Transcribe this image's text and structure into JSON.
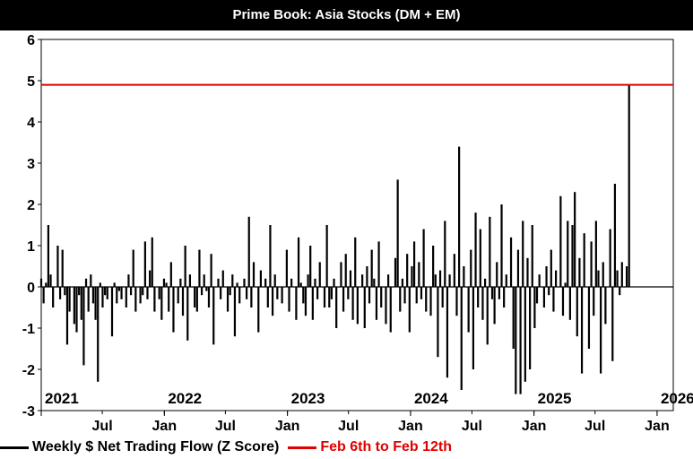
{
  "chart_data": {
    "type": "bar",
    "title": "Prime Book: Asia Stocks (DM + EM)",
    "ylim": [
      -3,
      6
    ],
    "yticks": [
      6,
      5,
      4,
      3,
      2,
      1,
      0,
      -1,
      -2,
      -3
    ],
    "year_labels": [
      {
        "label": "2021",
        "date": "2021-01-01"
      },
      {
        "label": "2022",
        "date": "2022-01-01"
      },
      {
        "label": "2023",
        "date": "2023-01-01"
      },
      {
        "label": "2024",
        "date": "2024-01-01"
      },
      {
        "label": "2025",
        "date": "2025-01-01"
      },
      {
        "label": "2026",
        "date": "2026-01-01"
      }
    ],
    "month_labels": [
      {
        "label": "Jul",
        "date": "2021-07-01"
      },
      {
        "label": "Jan",
        "date": "2022-01-01"
      },
      {
        "label": "Jul",
        "date": "2022-07-01"
      },
      {
        "label": "Jan",
        "date": "2023-01-01"
      },
      {
        "label": "Jul",
        "date": "2023-07-01"
      },
      {
        "label": "Jan",
        "date": "2024-01-01"
      },
      {
        "label": "Jul",
        "date": "2024-07-01"
      },
      {
        "label": "Jan",
        "date": "2025-01-01"
      },
      {
        "label": "Jul",
        "date": "2025-07-01"
      },
      {
        "label": "Jan",
        "date": "2026-01-01"
      }
    ],
    "x_start": "2021-01-01",
    "x_end": "2026-02-18",
    "series": [
      {
        "name": "Weekly $ Net Trading Flow (Z Score)",
        "color": "#000000",
        "start_date": "2021-01-01",
        "interval_days": 7,
        "values": [
          0.2,
          -0.4,
          0.1,
          1.5,
          0.3,
          -0.5,
          0.0,
          1.0,
          -0.3,
          0.9,
          -0.2,
          -1.4,
          -0.6,
          0.0,
          -0.9,
          -1.1,
          -0.2,
          -0.8,
          -1.9,
          0.2,
          -0.6,
          0.3,
          -0.4,
          -0.8,
          -2.3,
          0.1,
          -0.5,
          -0.2,
          -0.3,
          0.0,
          -1.2,
          0.1,
          -0.4,
          -0.1,
          -0.3,
          0.0,
          -0.5,
          0.3,
          -0.2,
          0.9,
          -0.6,
          0.0,
          -0.4,
          -0.2,
          1.1,
          -0.3,
          0.4,
          1.2,
          -0.6,
          0.0,
          -0.3,
          -0.8,
          0.2,
          0.1,
          -0.6,
          0.6,
          -1.1,
          0.0,
          -0.4,
          0.2,
          -0.7,
          1.0,
          -1.3,
          0.3,
          0.0,
          -0.5,
          -0.6,
          0.9,
          -0.2,
          0.3,
          -0.1,
          -0.5,
          0.8,
          -1.4,
          0.0,
          0.2,
          -0.3,
          0.4,
          0.0,
          -0.6,
          -0.2,
          0.3,
          -1.2,
          0.1,
          -0.4,
          0.0,
          0.2,
          -0.3,
          1.7,
          -0.5,
          0.6,
          0.0,
          -1.1,
          0.4,
          0.0,
          0.2,
          -0.5,
          1.5,
          -0.7,
          0.3,
          -0.3,
          0.0,
          -0.4,
          0.0,
          0.9,
          -0.6,
          0.2,
          0.0,
          -0.8,
          1.2,
          0.1,
          -0.4,
          -0.7,
          0.3,
          1.0,
          -0.8,
          0.2,
          -0.3,
          0.6,
          0.0,
          -0.5,
          1.5,
          -0.5,
          -0.3,
          0.2,
          -1.0,
          0.0,
          0.6,
          -0.6,
          0.8,
          -0.3,
          0.4,
          -0.8,
          1.2,
          -0.9,
          0.0,
          0.3,
          -1.0,
          0.5,
          -0.4,
          0.9,
          0.2,
          -0.8,
          1.1,
          -0.5,
          0.0,
          -0.9,
          0.3,
          -1.1,
          0.0,
          0.7,
          2.6,
          -0.6,
          0.2,
          -0.4,
          0.8,
          -1.1,
          0.5,
          1.1,
          -0.4,
          0.6,
          -0.3,
          1.4,
          -0.6,
          0.0,
          -0.7,
          1.0,
          0.3,
          -1.7,
          0.4,
          -0.5,
          1.6,
          -2.2,
          0.3,
          0.0,
          0.8,
          -0.7,
          3.4,
          -2.5,
          0.5,
          0.0,
          -1.1,
          0.9,
          -2.0,
          1.8,
          -0.5,
          1.4,
          -0.8,
          0.2,
          -1.4,
          1.7,
          -0.3,
          -0.9,
          0.6,
          -0.3,
          2.0,
          -0.5,
          0.3,
          0.0,
          1.2,
          -1.5,
          -2.6,
          0.9,
          -2.6,
          1.6,
          -2.3,
          0.7,
          -2.0,
          1.5,
          -1.0,
          -0.4,
          0.3,
          0.0,
          -0.5,
          0.5,
          -0.2,
          0.9,
          -0.6,
          0.4,
          0.0,
          2.2,
          -0.7,
          0.1,
          1.6,
          -0.8,
          1.5,
          2.3,
          -1.2,
          0.7,
          -2.1,
          1.3,
          0.0,
          -1.5,
          1.1,
          -0.7,
          1.6,
          0.4,
          -2.1,
          0.6,
          -0.9,
          0.0,
          1.4,
          -1.8,
          2.5,
          0.4,
          -0.2,
          0.6,
          0.0,
          0.5,
          4.9
        ]
      },
      {
        "name": "Feb 6th to Feb 12th",
        "color": "#e00000",
        "value": 4.9
      }
    ]
  }
}
